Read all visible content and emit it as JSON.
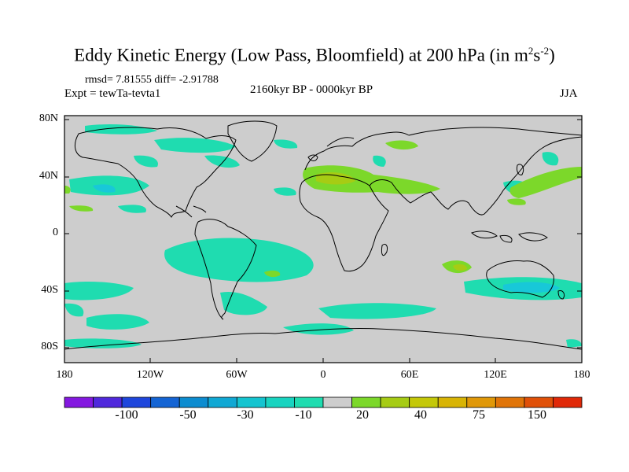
{
  "title": {
    "main": "Eddy Kinetic Energy (Low Pass, Bloomfield) at 200 hPa (in m",
    "sup1": "2",
    "mid": "s",
    "sup2": "-2",
    "end": ")"
  },
  "stats": "rmsd= 7.81555 diff= -2.91788",
  "experiment": "Expt = tewTa-tevta1",
  "period": "2160kyr BP - 0000kyr BP",
  "season": "JJA",
  "map": {
    "lat_range": [
      -90,
      90
    ],
    "lon_range": [
      -180,
      180
    ],
    "lat_ticks": [
      "80N",
      "40N",
      "0",
      "40S",
      "80S"
    ],
    "lon_ticks": [
      "180",
      "120W",
      "60W",
      "0",
      "60E",
      "120E",
      "180"
    ],
    "colors": {
      "neutral": "#cdcdcd",
      "neg_light": "#1fdcb0",
      "neg_mid": "#18c8d8",
      "pos_light": "#7cd82a",
      "pos_mid": "#a6cc14"
    }
  },
  "colorbar": {
    "colors": [
      "#8418e0",
      "#5028dc",
      "#1e46dc",
      "#1464d4",
      "#0c8cd0",
      "#10a8d4",
      "#14c4d0",
      "#18d4c0",
      "#1fdcb0",
      "#cdcdcd",
      "#7cd82a",
      "#a6cc14",
      "#c4c808",
      "#d8b404",
      "#e09808",
      "#e07408",
      "#e05008",
      "#e02808"
    ],
    "labels": [
      "-100",
      "-50",
      "-30",
      "-10",
      "20",
      "40",
      "75",
      "150"
    ]
  }
}
